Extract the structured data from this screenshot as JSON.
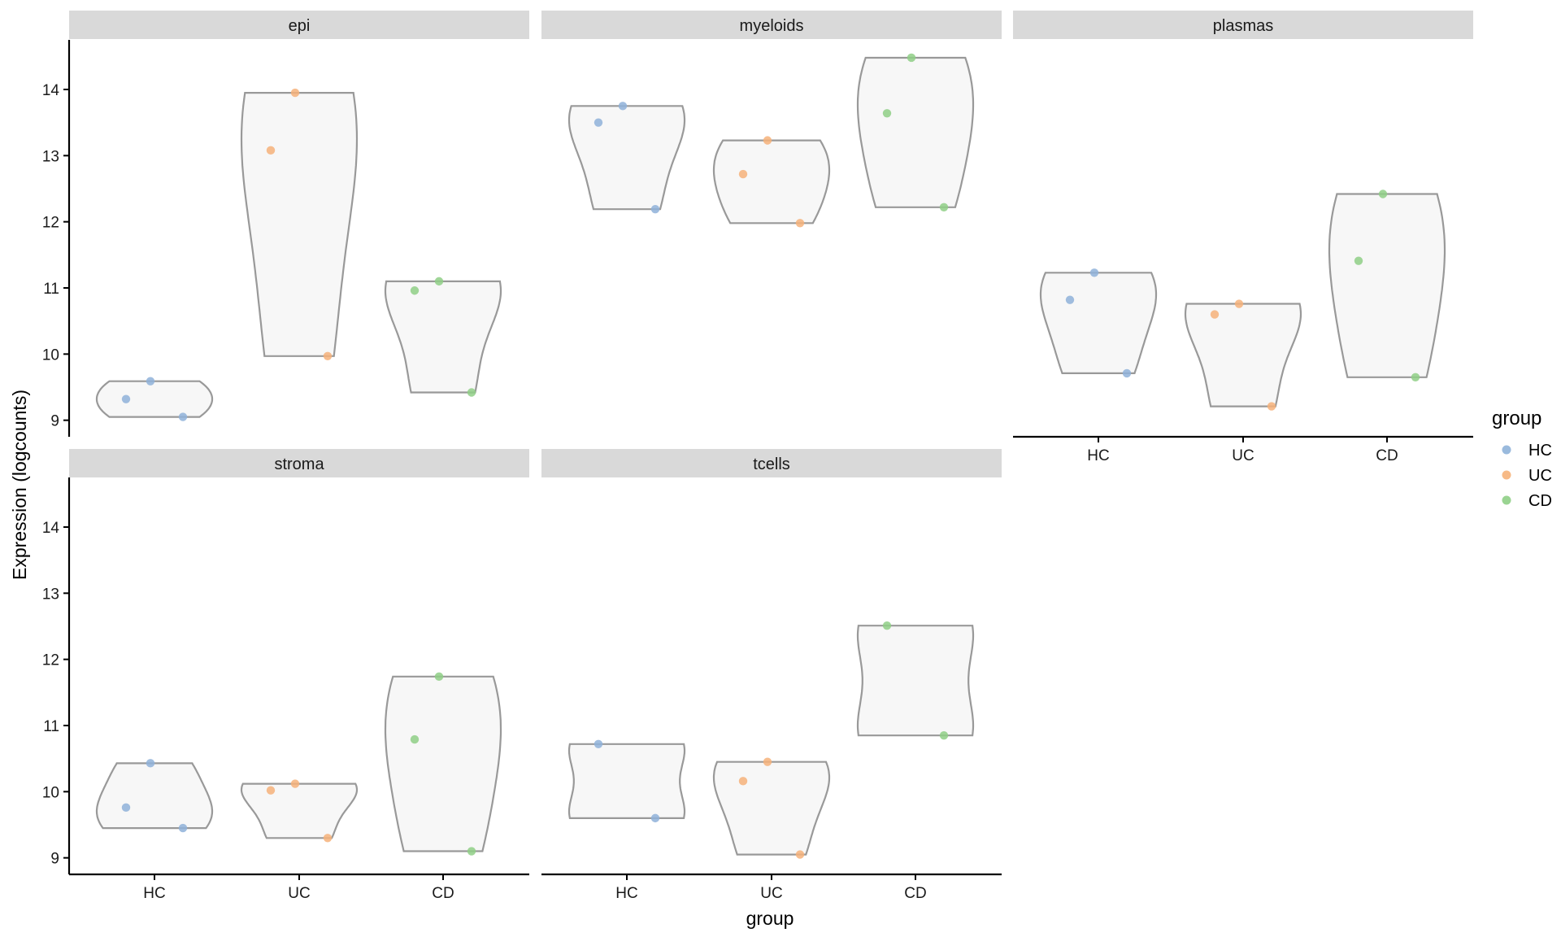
{
  "chart_data": {
    "type": "violin",
    "xlabel": "group",
    "ylabel": "Expression (logcounts)",
    "categories": [
      "HC",
      "UC",
      "CD"
    ],
    "y_ticks": [
      9,
      10,
      11,
      12,
      13,
      14
    ],
    "ylim": [
      8.75,
      14.75
    ],
    "grid": false,
    "legend": {
      "title": "group",
      "position": "right",
      "entries": [
        {
          "label": "HC",
          "color": "#8fb2d9"
        },
        {
          "label": "UC",
          "color": "#f6b27a"
        },
        {
          "label": "CD",
          "color": "#8fcf86"
        }
      ]
    },
    "violin_fill": "#f7f7f7",
    "violin_stroke": "#999999",
    "panels": [
      {
        "name": "epi",
        "groups": [
          {
            "group": "HC",
            "points": [
              9.32,
              9.05,
              9.59
            ]
          },
          {
            "group": "UC",
            "points": [
              13.08,
              9.97,
              13.95
            ]
          },
          {
            "group": "CD",
            "points": [
              10.96,
              9.42,
              11.1
            ]
          }
        ]
      },
      {
        "name": "myeloids",
        "groups": [
          {
            "group": "HC",
            "points": [
              13.5,
              12.19,
              13.75
            ]
          },
          {
            "group": "UC",
            "points": [
              12.72,
              11.98,
              13.23
            ]
          },
          {
            "group": "CD",
            "points": [
              13.64,
              12.22,
              14.48
            ]
          }
        ]
      },
      {
        "name": "plasmas",
        "groups": [
          {
            "group": "HC",
            "points": [
              10.82,
              9.71,
              11.23
            ]
          },
          {
            "group": "UC",
            "points": [
              10.6,
              9.21,
              10.76
            ]
          },
          {
            "group": "CD",
            "points": [
              11.41,
              9.65,
              12.42
            ]
          }
        ]
      },
      {
        "name": "stroma",
        "groups": [
          {
            "group": "HC",
            "points": [
              9.76,
              9.45,
              10.43
            ]
          },
          {
            "group": "UC",
            "points": [
              10.02,
              9.3,
              10.12
            ]
          },
          {
            "group": "CD",
            "points": [
              10.79,
              9.1,
              11.74
            ]
          }
        ]
      },
      {
        "name": "tcells",
        "groups": [
          {
            "group": "HC",
            "points": [
              10.72,
              9.6
            ]
          },
          {
            "group": "UC",
            "points": [
              10.16,
              9.05,
              10.45
            ]
          },
          {
            "group": "CD",
            "points": [
              12.51,
              10.85
            ]
          }
        ]
      }
    ]
  }
}
